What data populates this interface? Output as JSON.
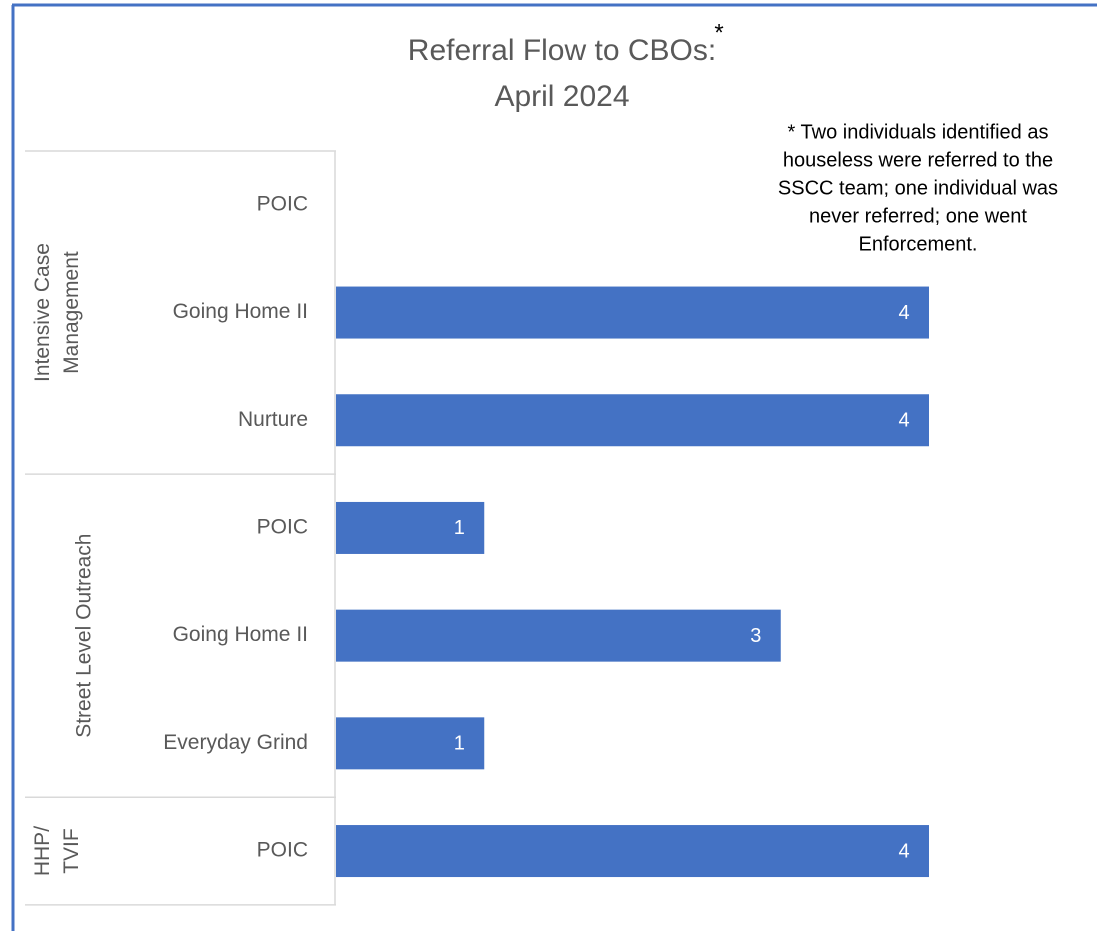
{
  "chart_data": {
    "type": "bar",
    "orientation": "horizontal",
    "title": [
      "Referral Flow to CBOs:",
      "April 2024"
    ],
    "title_marker": "*",
    "annotation": [
      "* Two individuals identified as",
      "houseless were referred to the",
      "SSCC team; one individual was",
      "never referred; one went",
      "Enforcement."
    ],
    "color": "#4472c4",
    "groups": [
      {
        "name": [
          "Intensive Case",
          "Management"
        ],
        "categories": [
          "POIC",
          "Going Home II",
          "Nurture"
        ],
        "values": [
          null,
          4,
          4
        ]
      },
      {
        "name": [
          "Street Level Outreach"
        ],
        "categories": [
          "POIC",
          "Going Home II",
          "Everyday Grind"
        ],
        "values": [
          1,
          3,
          1
        ]
      },
      {
        "name": [
          "HHP/",
          "TVIF"
        ],
        "categories": [
          "POIC"
        ],
        "values": [
          4
        ]
      }
    ]
  }
}
